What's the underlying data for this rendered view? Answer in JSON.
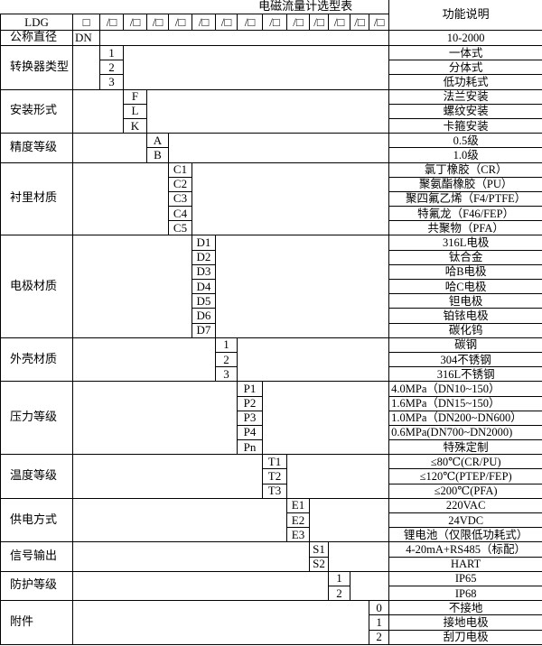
{
  "title": "电磁流量计选型表",
  "function_header": "功能说明",
  "model_prefix": "LDG",
  "first_box": "□",
  "slot_box": "/□",
  "slot_count": 13,
  "nominal_diameter": {
    "label": "公称直径",
    "code": "DN",
    "desc": "10-2000"
  },
  "groups": [
    {
      "label": "转换器类型",
      "col": 2,
      "codes": [
        "1",
        "2",
        "3"
      ],
      "descs": [
        "一体式",
        "分体式",
        "低功耗式"
      ]
    },
    {
      "label": "安装形式",
      "col": 3,
      "codes": [
        "F",
        "L",
        "K"
      ],
      "descs": [
        "法兰安装",
        "螺纹安装",
        "卡箍安装"
      ]
    },
    {
      "label": "精度等级",
      "col": 4,
      "codes": [
        "A",
        "B"
      ],
      "descs": [
        "0.5级",
        "1.0级"
      ]
    },
    {
      "label": "衬里材质",
      "col": 5,
      "codes": [
        "C1",
        "C2",
        "C3",
        "C4",
        "C5"
      ],
      "descs": [
        "氯丁橡胶（CR）",
        "聚氨酯橡胶（PU）",
        "聚四氟乙烯（F4/PTFE）",
        "特氟龙（F46/FEP）",
        "共聚物（PFA）"
      ]
    },
    {
      "label": "电极材质",
      "col": 6,
      "codes": [
        "D1",
        "D2",
        "D3",
        "D4",
        "D5",
        "D6",
        "D7"
      ],
      "descs": [
        "316L电极",
        "钛合金",
        "哈B电极",
        "哈C电极",
        "钽电极",
        "铂铱电极",
        "碳化钨"
      ]
    },
    {
      "label": "外壳材质",
      "col": 7,
      "codes": [
        "1",
        "2",
        "3"
      ],
      "descs": [
        "碳钢",
        "304不锈钢",
        "316L不锈钢"
      ]
    },
    {
      "label": "压力等级",
      "col": 8,
      "codes": [
        "P1",
        "P2",
        "P3",
        "P4",
        "Pn"
      ],
      "descs": [
        "4.0MPa（DN10~150）",
        "1.6MPa（DN15~150）",
        "1.0MPa（DN200~DN600）",
        "0.6MPa(DN700~DN2000)",
        "特殊定制"
      ],
      "left_aligned": [
        true,
        true,
        true,
        true,
        false
      ]
    },
    {
      "label": "温度等级",
      "col": 9,
      "codes": [
        "T1",
        "T2",
        "T3"
      ],
      "descs": [
        "≤80℃(CR/PU)",
        "≤120℃(PTEP/FEP)",
        "≤200℃(PFA)"
      ]
    },
    {
      "label": "供电方式",
      "col": 10,
      "codes": [
        "E1",
        "E2",
        "E3"
      ],
      "descs": [
        "220VAC",
        "24VDC",
        "锂电池（仅限低功耗式）"
      ]
    },
    {
      "label": "信号输出",
      "col": 11,
      "codes": [
        "S1",
        "S2"
      ],
      "descs": [
        "4-20mA+RS485（标配）",
        "HART"
      ]
    },
    {
      "label": "防护等级",
      "col": 12,
      "codes": [
        "1",
        "2"
      ],
      "descs": [
        "IP65",
        "IP68"
      ]
    },
    {
      "label": "附件",
      "col": 14,
      "codes": [
        "0",
        "1",
        "2"
      ],
      "descs": [
        "不接地",
        "接地电极",
        "刮刀电极"
      ]
    }
  ]
}
